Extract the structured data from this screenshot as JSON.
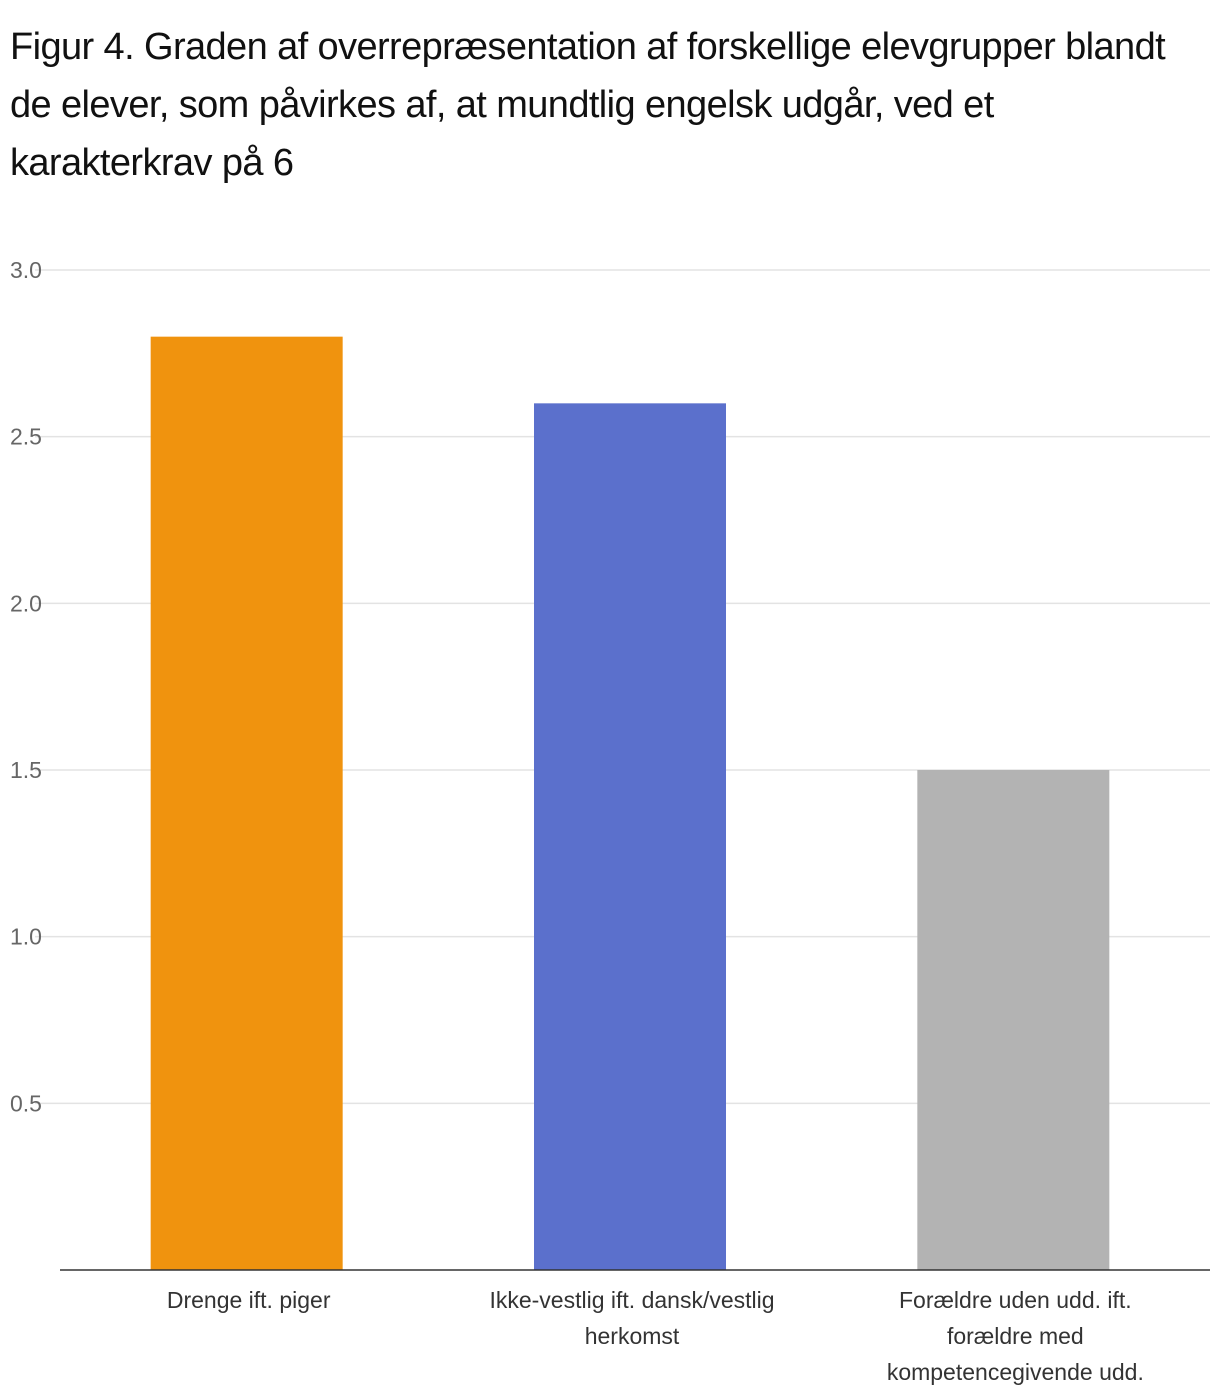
{
  "chart_data": {
    "type": "bar",
    "title": "Figur 4. Graden af overrepræsentation af forskellige elevgrupper blandt de elever, som påvirkes af, at mundtlig engelsk udgår, ved et karakterkrav på 6",
    "categories": [
      [
        "Drenge ift. piger"
      ],
      [
        "Ikke-vestlig ift. dansk/vestlig",
        "herkomst"
      ],
      [
        "Forældre uden udd. ift.",
        "forældre med",
        "kompetencegivende udd."
      ]
    ],
    "values": [
      2.8,
      2.6,
      1.5
    ],
    "colors": [
      "#f0930e",
      "#5b70cc",
      "#b3b3b3"
    ],
    "ylim": [
      0,
      3.0
    ],
    "yticks": [
      0.5,
      1.0,
      1.5,
      2.0,
      2.5,
      3.0
    ],
    "ytick_labels": [
      "0.5",
      "1.0",
      "1.5",
      "2.0",
      "2.5",
      "3.0"
    ],
    "grid": true,
    "xlabel": "",
    "ylabel": ""
  }
}
